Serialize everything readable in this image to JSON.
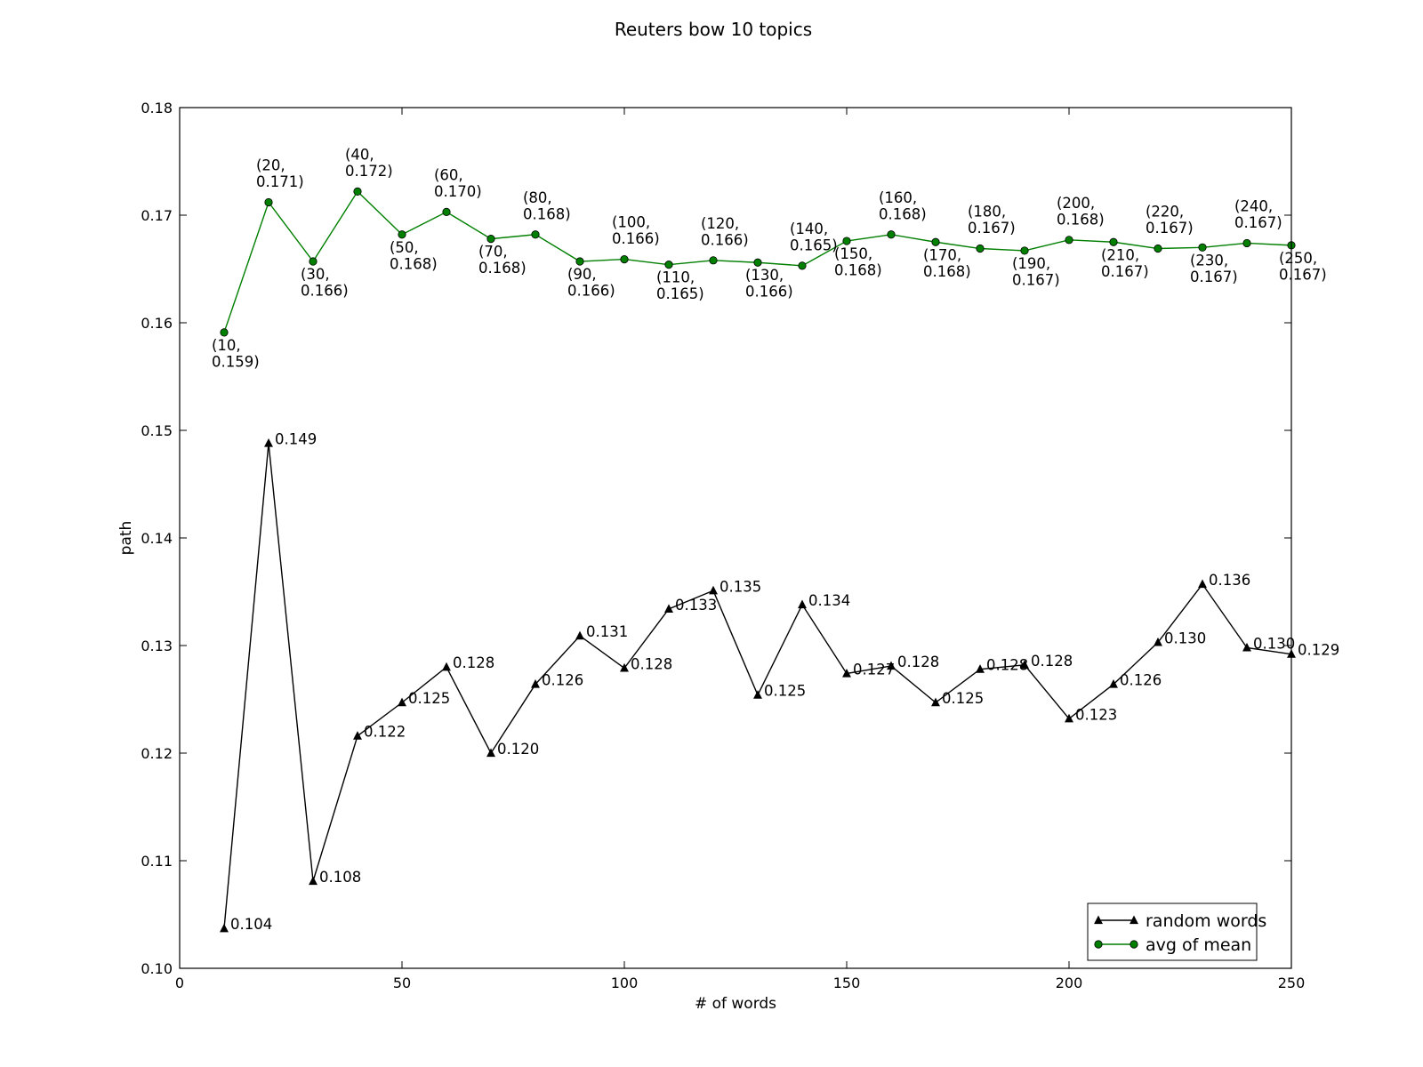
{
  "chart_data": {
    "type": "line",
    "title": "Reuters bow  10 topics",
    "xlabel": "# of words",
    "ylabel": "path",
    "xlim": [
      0,
      250
    ],
    "ylim": [
      0.1,
      0.18
    ],
    "xticks": [
      0,
      50,
      100,
      150,
      200,
      250
    ],
    "xtick_labels": [
      "0",
      "50",
      "100",
      "150",
      "200",
      "250"
    ],
    "yticks": [
      0.1,
      0.11,
      0.12,
      0.13,
      0.14,
      0.15,
      0.16,
      0.17,
      0.18
    ],
    "ytick_labels": [
      "0.10",
      "0.11",
      "0.12",
      "0.13",
      "0.14",
      "0.15",
      "0.16",
      "0.17",
      "0.18"
    ],
    "grid": false,
    "legend": "lower-right",
    "x": [
      10,
      20,
      30,
      40,
      50,
      60,
      70,
      80,
      90,
      100,
      110,
      120,
      130,
      140,
      150,
      160,
      170,
      180,
      190,
      200,
      210,
      220,
      230,
      240,
      250
    ],
    "series": [
      {
        "name": "random words",
        "color": "#000000",
        "marker": "triangle",
        "values": [
          0.1037,
          0.1488,
          0.1081,
          0.1216,
          0.1247,
          0.128,
          0.12,
          0.1264,
          0.1309,
          0.1279,
          0.1334,
          0.1351,
          0.1254,
          0.1338,
          0.1274,
          0.1281,
          0.1247,
          0.1278,
          0.1282,
          0.1232,
          0.1264,
          0.1303,
          0.1357,
          0.1298,
          0.1292
        ],
        "labels": [
          "0.104",
          "0.149",
          "0.108",
          "0.122",
          "0.125",
          "0.128",
          "0.120",
          "0.126",
          "0.131",
          "0.128",
          "0.133",
          "0.135",
          "0.125",
          "0.134",
          "0.127",
          "0.128",
          "0.125",
          "0.128",
          "0.128",
          "0.123",
          "0.126",
          "0.130",
          "0.136",
          "0.130",
          "0.129"
        ]
      },
      {
        "name": "avg of mean",
        "color": "#007f00",
        "marker": "circle",
        "values": [
          0.1591,
          0.1712,
          0.1657,
          0.1722,
          0.1682,
          0.1703,
          0.1678,
          0.1682,
          0.1657,
          0.1659,
          0.1654,
          0.1658,
          0.1656,
          0.1653,
          0.1676,
          0.1682,
          0.1675,
          0.1669,
          0.1667,
          0.1677,
          0.1675,
          0.1669,
          0.167,
          0.1674,
          0.1672
        ],
        "labels_line1": [
          "(10,",
          "(20,",
          "(30,",
          "(40,",
          "(50,",
          "(60,",
          "(70,",
          "(80,",
          "(90,",
          "(100,",
          "(110,",
          "(120,",
          "(130,",
          "(140,",
          "(150,",
          "(160,",
          "(170,",
          "(180,",
          "(190,",
          "(200,",
          "(210,",
          "(220,",
          "(230,",
          "(240,",
          "(250,"
        ],
        "labels_line2": [
          "0.159)",
          "0.171)",
          "0.166)",
          "0.172)",
          "0.168)",
          "0.170)",
          "0.168)",
          "0.168)",
          "0.166)",
          "0.166)",
          "0.165)",
          "0.166)",
          "0.166)",
          "0.165)",
          "0.168)",
          "0.168)",
          "0.168)",
          "0.167)",
          "0.167)",
          "0.168)",
          "0.167)",
          "0.167)",
          "0.167)",
          "0.167)",
          "0.167)"
        ],
        "label_positions": [
          "below",
          "above",
          "below",
          "above",
          "below",
          "above",
          "below",
          "above",
          "below",
          "above",
          "below",
          "above",
          "below",
          "above",
          "below",
          "above",
          "below",
          "above",
          "below",
          "above",
          "below",
          "above",
          "below",
          "above",
          "below"
        ]
      }
    ]
  }
}
